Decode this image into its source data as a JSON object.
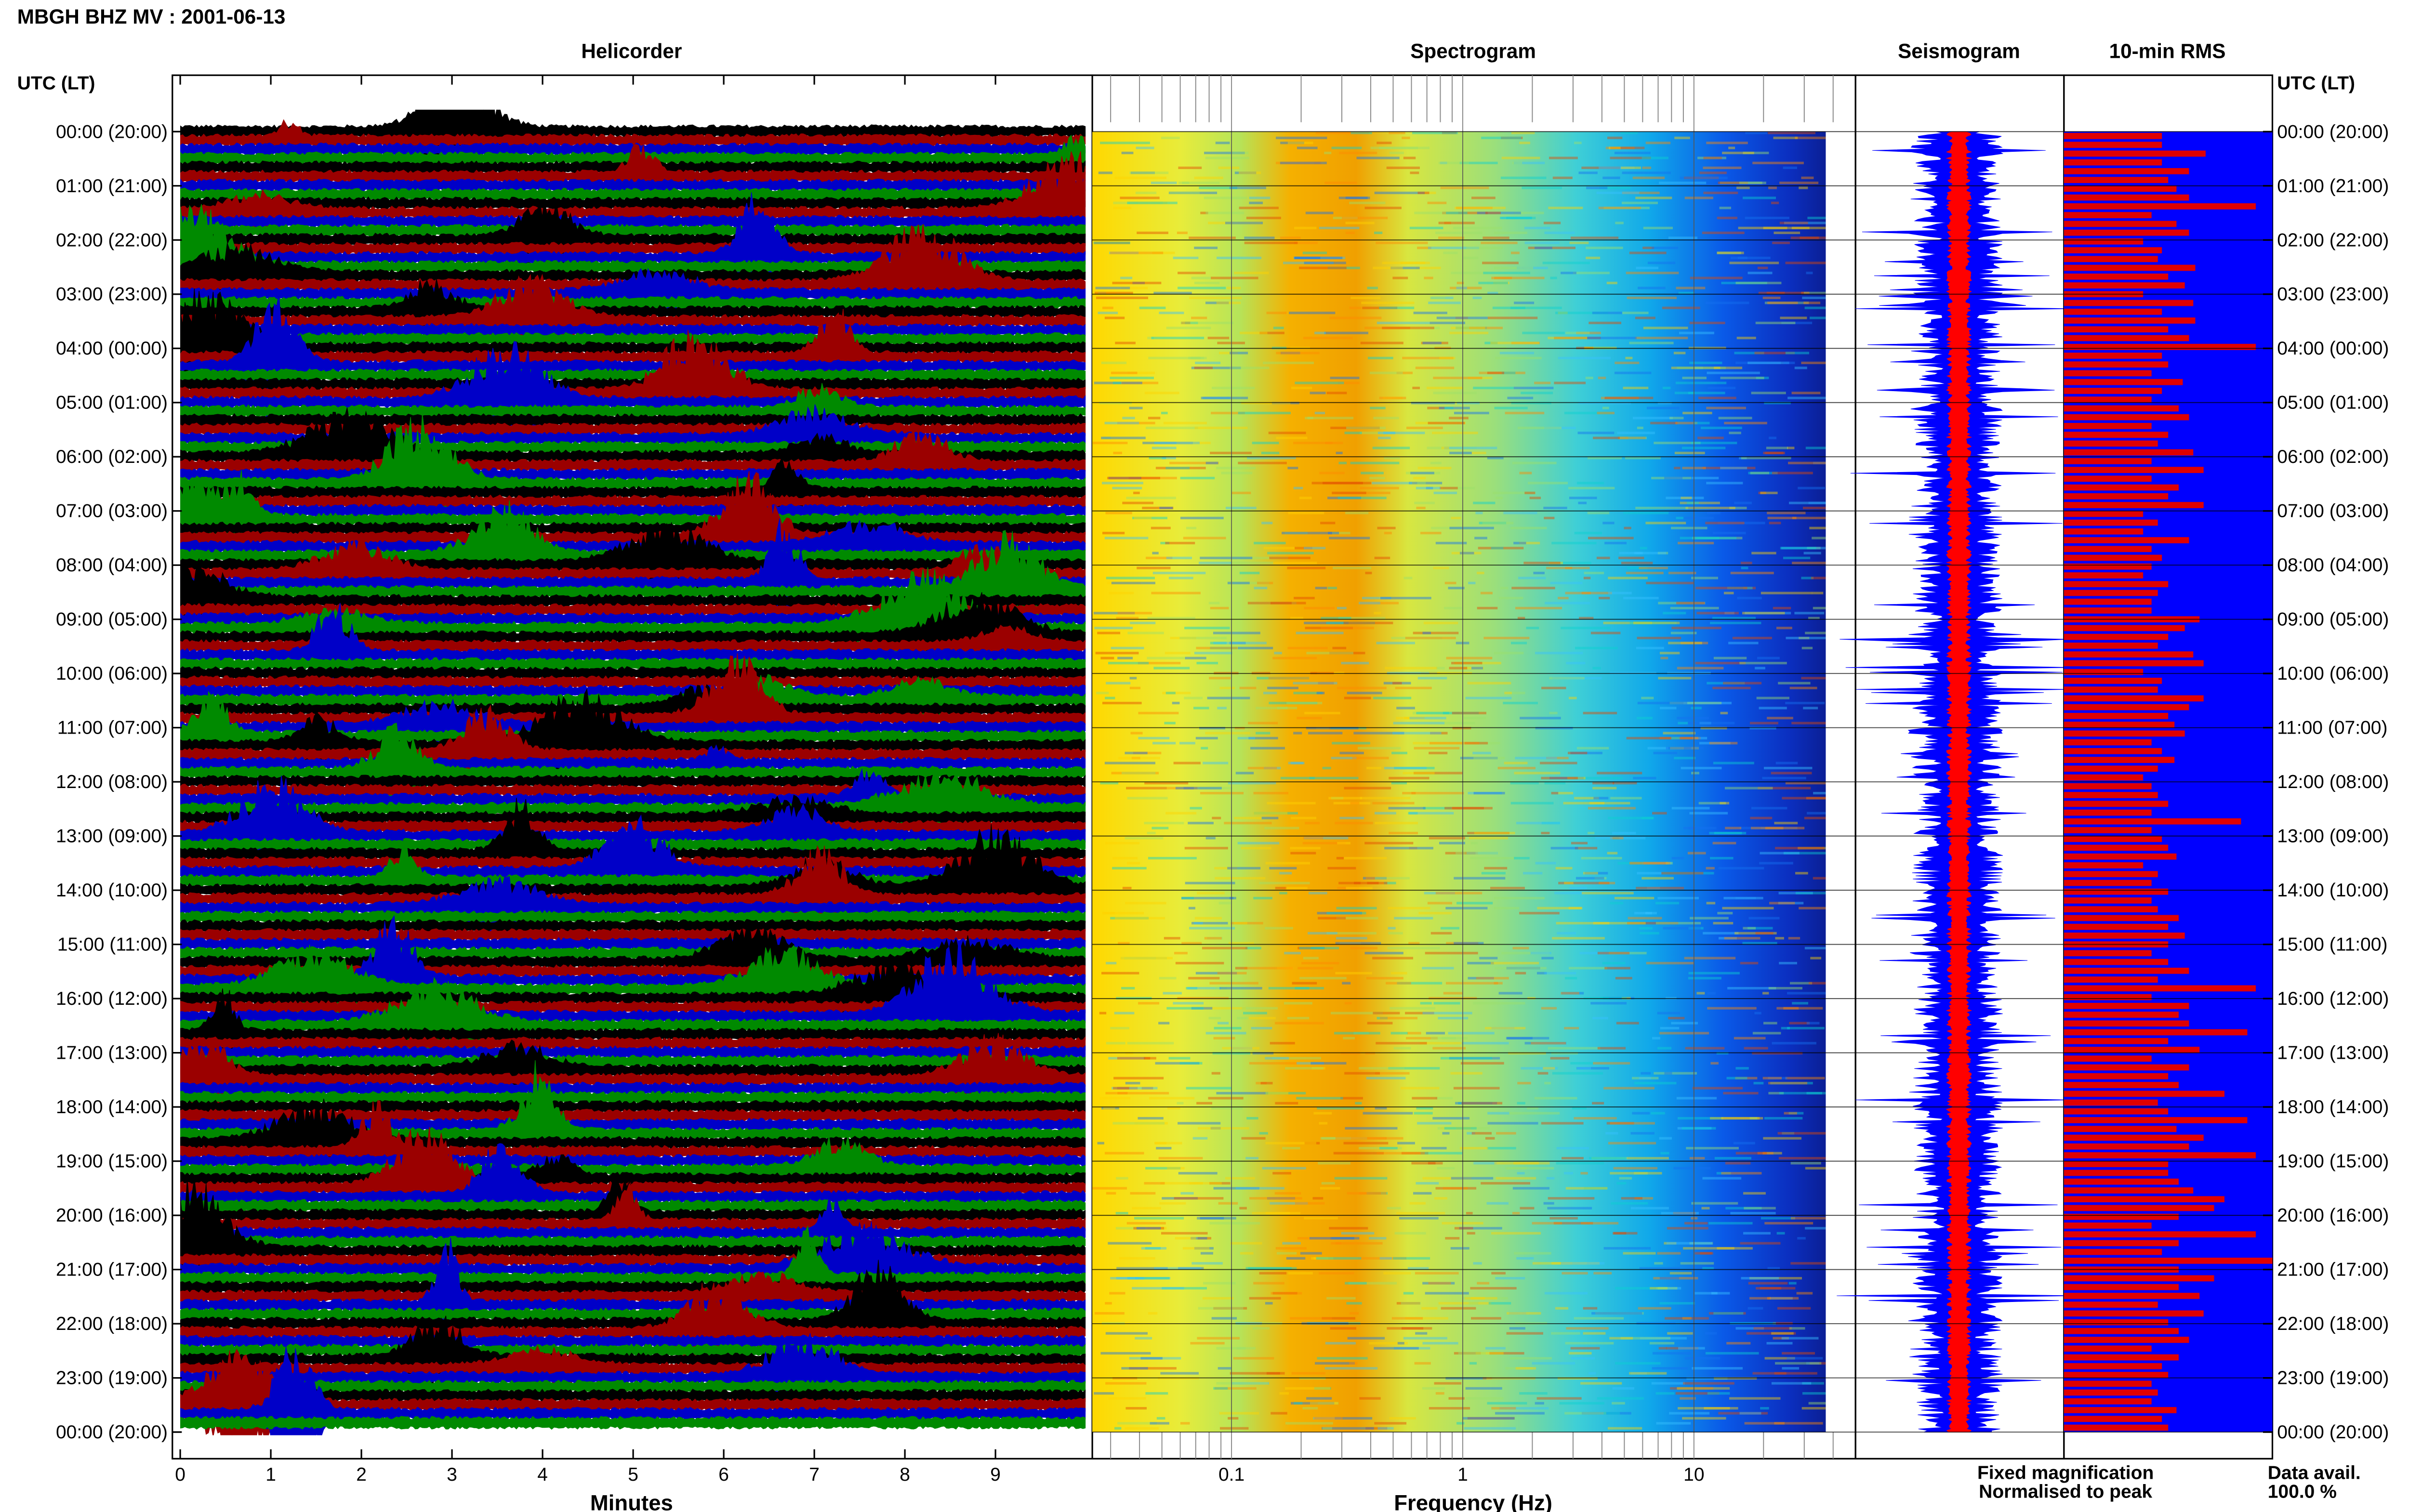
{
  "header": {
    "title": "MBGH BHZ MV : 2001-06-13",
    "left_axis_title": "UTC (LT)",
    "right_axis_title": "UTC (LT)"
  },
  "panels": {
    "helicorder_title": "Helicorder",
    "spectrogram_title": "Spectrogram",
    "seismogram_title": "Seismogram",
    "rms_title": "10-min RMS"
  },
  "legend": {
    "fixed_label": "Fixed magnification",
    "normalised_label": "Normalised to peak",
    "data_avail_label": "Data avail.",
    "data_avail_value": "100.0 %"
  },
  "colors": {
    "heli_traces": [
      "#000000",
      "#9b0000",
      "#0000c8",
      "#008a00"
    ],
    "seis_fixed": "#0000ff",
    "seis_norm": "#ff0000",
    "rms_bg": "#0000ff",
    "rms_bar": "#e00000",
    "legend_fixed": "#0000ff",
    "legend_norm": "#ff0000"
  },
  "chart_data": [
    {
      "type": "line",
      "title": "Helicorder",
      "xlabel": "Minutes",
      "ylabel": "UTC (LT)",
      "x_ticks": [
        "0",
        "1",
        "2",
        "3",
        "4",
        "5",
        "6",
        "7",
        "8",
        "9"
      ],
      "xlim": [
        0,
        10
      ],
      "y_ticks": [
        "00:00 (20:00)",
        "01:00 (21:00)",
        "02:00 (22:00)",
        "03:00 (23:00)",
        "04:00 (00:00)",
        "05:00 (01:00)",
        "06:00 (02:00)",
        "07:00 (03:00)",
        "08:00 (04:00)",
        "09:00 (05:00)",
        "10:00 (06:00)",
        "11:00 (07:00)",
        "12:00 (08:00)",
        "13:00 (09:00)",
        "14:00 (10:00)",
        "15:00 (11:00)",
        "16:00 (12:00)",
        "17:00 (13:00)",
        "18:00 (14:00)",
        "19:00 (15:00)",
        "20:00 (16:00)",
        "21:00 (17:00)",
        "22:00 (18:00)",
        "23:00 (19:00)",
        "00:00 (20:00)"
      ],
      "traces_per_hour": 6
    },
    {
      "type": "heatmap",
      "title": "Spectrogram",
      "xlabel": "Frequency (Hz)",
      "x_scale": "log",
      "xlim": [
        0.025,
        50
      ],
      "x_tick_labels": [
        "0.1",
        "1",
        "10"
      ]
    },
    {
      "type": "line",
      "title": "Seismogram",
      "series": [
        {
          "name": "Fixed magnification"
        },
        {
          "name": "Normalised to peak"
        }
      ]
    },
    {
      "type": "bar",
      "title": "10-min RMS",
      "orientation": "horizontal",
      "rms_level_per_10min": [
        0.47,
        0.47,
        0.68,
        0.47,
        0.6,
        0.5,
        0.54,
        0.6,
        0.92,
        0.42,
        0.54,
        0.6,
        0.38,
        0.47,
        0.45,
        0.63,
        0.5,
        0.58,
        0.38,
        0.62,
        0.47,
        0.63,
        0.5,
        0.6,
        0.92,
        0.47,
        0.5,
        0.42,
        0.57,
        0.47,
        0.42,
        0.55,
        0.6,
        0.42,
        0.5,
        0.45,
        0.62,
        0.42,
        0.67,
        0.42,
        0.55,
        0.5,
        0.67,
        0.38,
        0.45,
        0.38,
        0.6,
        0.42,
        0.47,
        0.42,
        0.38,
        0.5,
        0.45,
        0.42,
        0.42,
        0.65,
        0.58,
        0.5,
        0.45,
        0.62,
        0.67,
        0.38,
        0.47,
        0.45,
        0.67,
        0.6,
        0.5,
        0.53,
        0.58,
        0.42,
        0.47,
        0.53,
        0.45,
        0.38,
        0.42,
        0.45,
        0.5,
        0.42,
        0.85,
        0.42,
        0.47,
        0.5,
        0.54,
        0.38,
        0.45,
        0.42,
        0.5,
        0.42,
        0.45,
        0.55,
        0.5,
        0.58,
        0.5,
        0.42,
        0.5,
        0.6,
        0.45,
        0.92,
        0.42,
        0.6,
        0.55,
        0.6,
        0.88,
        0.5,
        0.65,
        0.42,
        0.6,
        0.5,
        0.55,
        0.77,
        0.45,
        0.5,
        0.88,
        0.54,
        0.67,
        0.6,
        0.92,
        0.5,
        0.5,
        0.55,
        0.62,
        0.77,
        0.72,
        0.55,
        0.42,
        0.92,
        0.55,
        0.47,
        1.0,
        0.55,
        0.72,
        0.55,
        0.65,
        0.45,
        0.67,
        0.5,
        0.55,
        0.6,
        0.42,
        0.55,
        0.47,
        0.5,
        0.42,
        0.45,
        0.42,
        0.54,
        0.47,
        0.5
      ]
    }
  ]
}
